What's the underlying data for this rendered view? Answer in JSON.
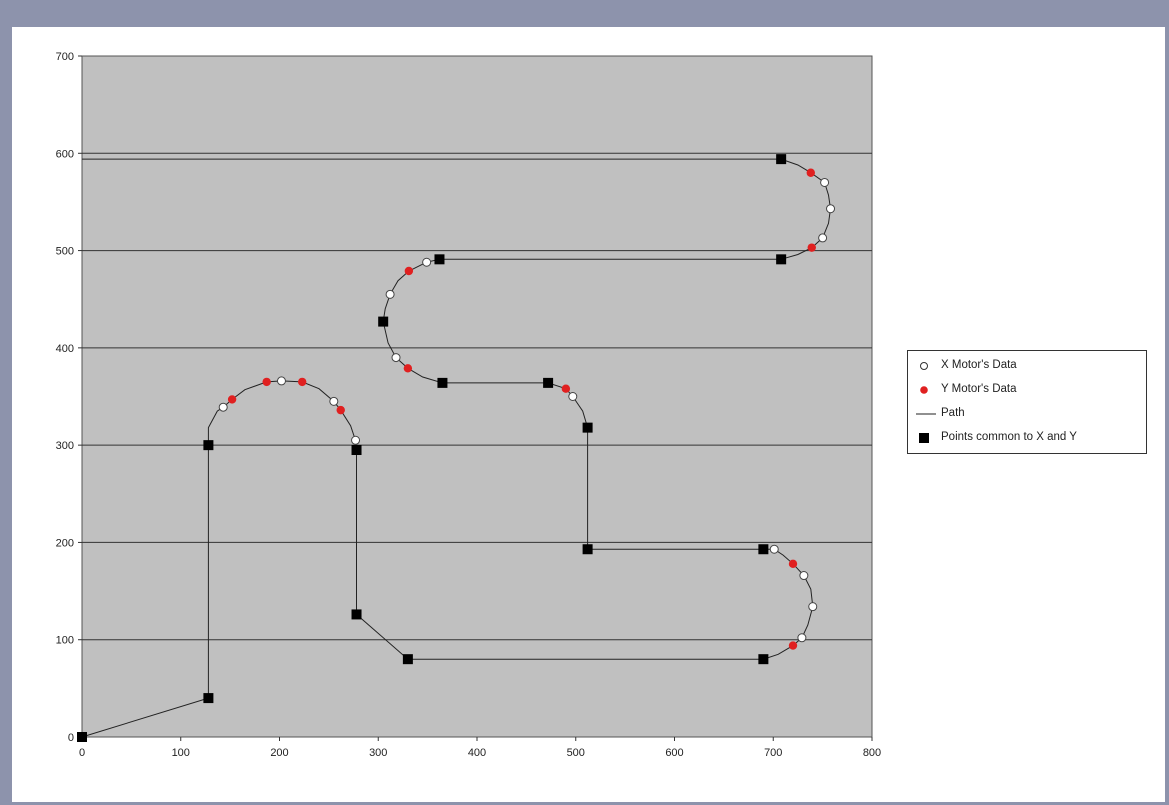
{
  "chart_data": {
    "type": "scatter",
    "title": "",
    "xlabel": "",
    "ylabel": "",
    "xlim": [
      0,
      800
    ],
    "ylim": [
      0,
      700
    ],
    "xticks": [
      "0",
      "100",
      "200",
      "300",
      "400",
      "500",
      "600",
      "700",
      "800"
    ],
    "yticks": [
      "0",
      "100",
      "200",
      "300",
      "400",
      "500",
      "600",
      "700"
    ],
    "grid": "horizontal",
    "legend_position": "right",
    "colors": {
      "plot_bg": "#c0c0c0",
      "grid": "#333333",
      "x_motor_fill": "#ffffff",
      "y_motor_fill": "#e02020",
      "common_fill": "#000000",
      "path": "#222222"
    },
    "series": [
      {
        "name": "X Motor's Data",
        "marker": "open-circle",
        "points": [
          [
            143,
            339
          ],
          [
            202,
            366
          ],
          [
            255,
            345
          ],
          [
            277,
            305
          ],
          [
            312,
            455
          ],
          [
            349,
            488
          ],
          [
            318,
            390
          ],
          [
            497,
            350
          ],
          [
            701,
            193
          ],
          [
            731,
            166
          ],
          [
            740,
            134
          ],
          [
            729,
            102
          ],
          [
            752,
            570
          ],
          [
            758,
            543
          ],
          [
            750,
            513
          ]
        ]
      },
      {
        "name": "Y Motor's Data",
        "marker": "red-dot",
        "points": [
          [
            152,
            347
          ],
          [
            187,
            365
          ],
          [
            223,
            365
          ],
          [
            262,
            336
          ],
          [
            331,
            479
          ],
          [
            330,
            379
          ],
          [
            490,
            358
          ],
          [
            720,
            178
          ],
          [
            720,
            94
          ],
          [
            738,
            580
          ],
          [
            739,
            503
          ]
        ]
      },
      {
        "name": "Path",
        "marker": "line",
        "points": [
          [
            0,
            0
          ],
          [
            128,
            40
          ],
          [
            128,
            300
          ],
          [
            128,
            318
          ],
          [
            137,
            335
          ],
          [
            143,
            339
          ],
          [
            152,
            347
          ],
          [
            165,
            357
          ],
          [
            187,
            365
          ],
          [
            202,
            366
          ],
          [
            223,
            365
          ],
          [
            240,
            358
          ],
          [
            255,
            345
          ],
          [
            262,
            336
          ],
          [
            272,
            320
          ],
          [
            277,
            305
          ],
          [
            278,
            295
          ],
          [
            278,
            126
          ],
          [
            330,
            80
          ],
          [
            690,
            80
          ],
          [
            705,
            85
          ],
          [
            720,
            94
          ],
          [
            729,
            102
          ],
          [
            735,
            115
          ],
          [
            740,
            134
          ],
          [
            738,
            152
          ],
          [
            731,
            166
          ],
          [
            720,
            178
          ],
          [
            710,
            187
          ],
          [
            701,
            193
          ],
          [
            690,
            193
          ],
          [
            512,
            193
          ],
          [
            512,
            318
          ],
          [
            507,
            335
          ],
          [
            497,
            350
          ],
          [
            490,
            358
          ],
          [
            472,
            364
          ],
          [
            365,
            364
          ],
          [
            345,
            370
          ],
          [
            330,
            379
          ],
          [
            318,
            390
          ],
          [
            310,
            405
          ],
          [
            305,
            427
          ],
          [
            307,
            440
          ],
          [
            312,
            455
          ],
          [
            320,
            469
          ],
          [
            331,
            479
          ],
          [
            349,
            488
          ],
          [
            362,
            491
          ],
          [
            708,
            491
          ],
          [
            725,
            496
          ],
          [
            739,
            503
          ],
          [
            750,
            513
          ],
          [
            756,
            528
          ],
          [
            758,
            543
          ],
          [
            756,
            557
          ],
          [
            752,
            570
          ],
          [
            738,
            580
          ],
          [
            725,
            588
          ],
          [
            708,
            594
          ],
          [
            0,
            594
          ]
        ]
      },
      {
        "name": "Points common to X and Y",
        "marker": "black-square",
        "points": [
          [
            0,
            0
          ],
          [
            128,
            40
          ],
          [
            128,
            300
          ],
          [
            278,
            295
          ],
          [
            278,
            126
          ],
          [
            330,
            80
          ],
          [
            690,
            80
          ],
          [
            690,
            193
          ],
          [
            512,
            193
          ],
          [
            512,
            318
          ],
          [
            472,
            364
          ],
          [
            365,
            364
          ],
          [
            305,
            427
          ],
          [
            362,
            491
          ],
          [
            708,
            491
          ],
          [
            708,
            594
          ]
        ]
      }
    ]
  },
  "legend": {
    "items": [
      {
        "label": "X Motor's Data",
        "icon": "open-circle-icon"
      },
      {
        "label": "Y Motor's Data",
        "icon": "red-dot-icon"
      },
      {
        "label": "Path",
        "icon": "line-icon"
      },
      {
        "label": "Points common to X and Y",
        "icon": "black-square-icon"
      }
    ]
  }
}
